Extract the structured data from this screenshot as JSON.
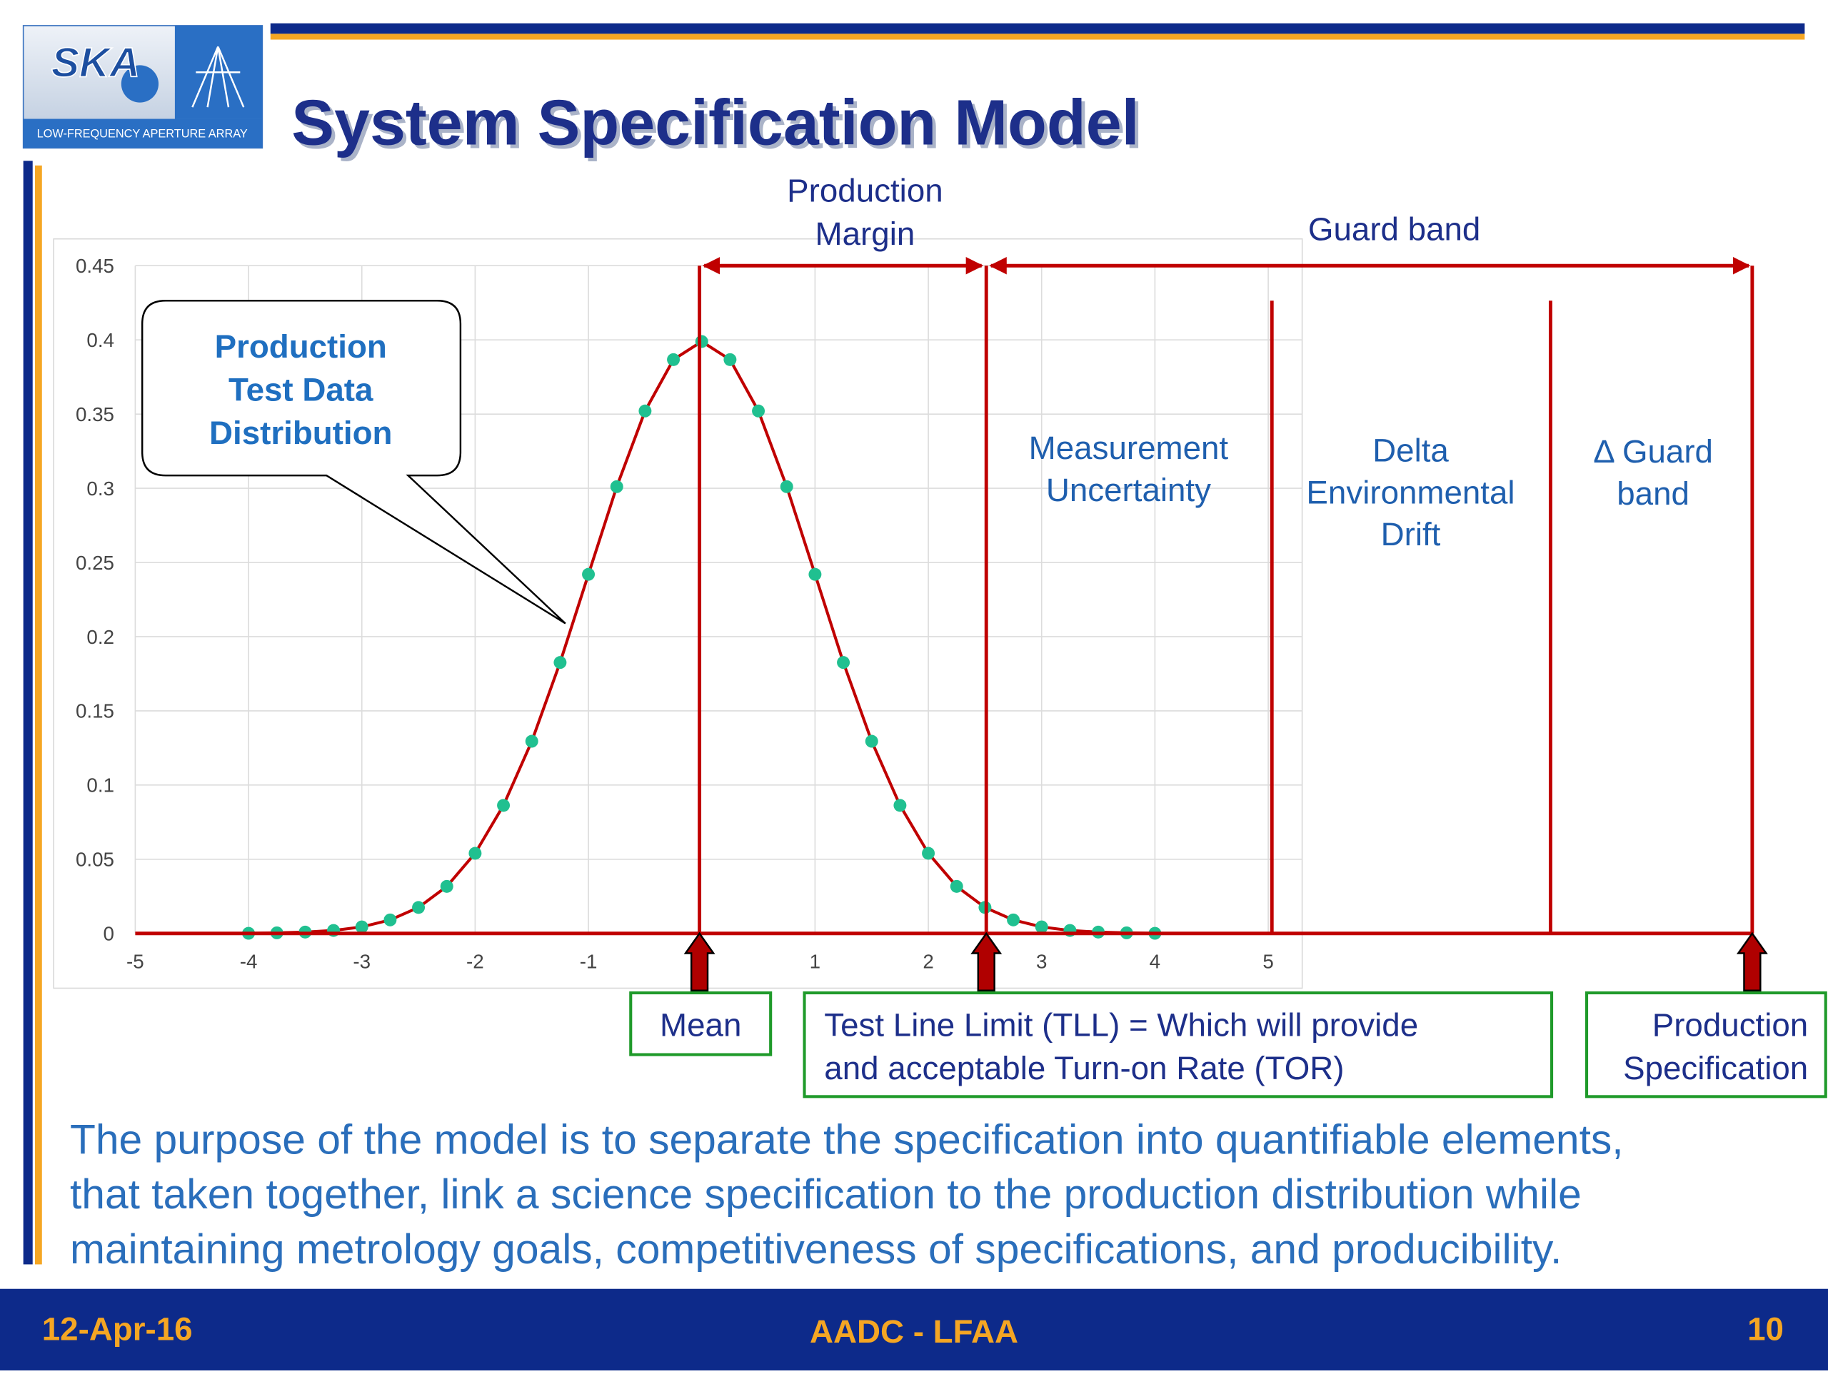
{
  "header": {
    "logo": "SKA",
    "logo_subtitle": "LOW-FREQUENCY APERTURE ARRAY",
    "title": "System Specification Model"
  },
  "chart_data": {
    "type": "line",
    "x": [
      -4,
      -3.75,
      -3.5,
      -3.25,
      -3,
      -2.75,
      -2.5,
      -2.25,
      -2,
      -1.75,
      -1.5,
      -1.25,
      -1,
      -0.75,
      -0.5,
      -0.25,
      0,
      0.25,
      0.5,
      0.75,
      1,
      1.25,
      1.5,
      1.75,
      2,
      2.25,
      2.5,
      2.75,
      3,
      3.25,
      3.5,
      3.75,
      4
    ],
    "values": [
      0.0001,
      0.0004,
      0.0009,
      0.002,
      0.0044,
      0.0091,
      0.0175,
      0.0317,
      0.054,
      0.0863,
      0.1295,
      0.1826,
      0.242,
      0.3011,
      0.3521,
      0.3867,
      0.3989,
      0.3867,
      0.3521,
      0.3011,
      0.242,
      0.1826,
      0.1295,
      0.0863,
      0.054,
      0.0317,
      0.0175,
      0.0091,
      0.0044,
      0.002,
      0.0009,
      0.0004,
      0.0001
    ],
    "color": "#c00000",
    "marker_color": "#20c090",
    "xlim": [
      -5,
      5.3
    ],
    "xticks": [
      -5,
      -4,
      -3,
      -2,
      -1,
      1,
      2,
      3,
      4,
      5
    ],
    "ylim": [
      0,
      0.45
    ],
    "yticks": [
      0,
      0.05,
      0.1,
      0.15,
      0.2,
      0.25,
      0.3,
      0.35,
      0.4,
      0.45
    ],
    "grid": true
  },
  "annotations": {
    "production_margin": [
      "Production",
      "Margin"
    ],
    "guard_band": "Guard band",
    "callout": [
      "Production",
      "Test Data",
      "Distribution"
    ],
    "measurement_uncertainty": [
      "Measurement",
      "Uncertainty"
    ],
    "environmental_drift": [
      "Delta",
      "Environmental",
      "Drift"
    ],
    "delta_guard_band": [
      "Δ Guard",
      "band"
    ],
    "mean": "Mean",
    "tll": [
      "Test Line Limit (TLL) = Which will provide",
      "and acceptable Turn-on Rate (TOR)"
    ],
    "production_specification": [
      "Production",
      "Specification"
    ]
  },
  "body": [
    "The purpose of the model is to separate the specification into quantifiable elements,",
    "that taken together, link a science specification to the production distribution while",
    "maintaining metrology goals, competitiveness of specifications, and producibility."
  ],
  "footer": {
    "date": "12-Apr-16",
    "center": "AADC - LFAA",
    "page": "10"
  }
}
